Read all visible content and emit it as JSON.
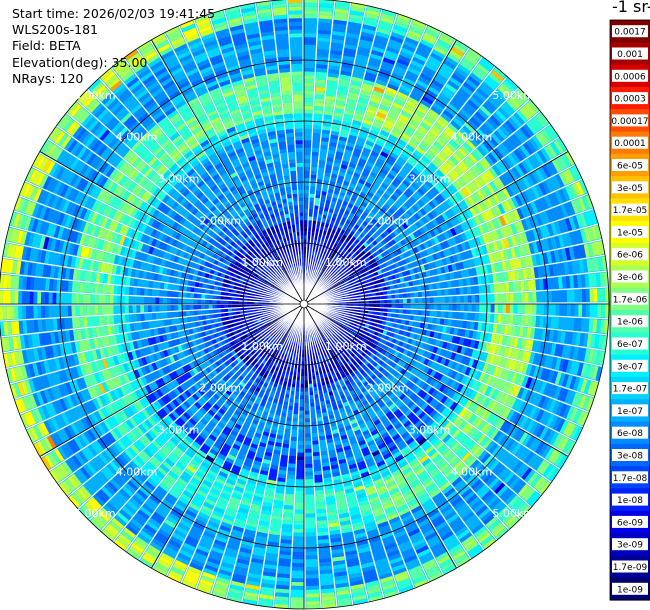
{
  "header": {
    "start_time": "Start time: 2026/02/03 19:41:45",
    "instrument": "WLS200s-181",
    "field": "Field: BETA",
    "elevation": "Elevation(deg): 35.00",
    "nrays": "NRays: 120"
  },
  "colorbar": {
    "title": "-1 sr-",
    "labels": [
      "0.0017",
      "0.001",
      "0.0006",
      "0.0003",
      "0.00017",
      "0.0001",
      "6e-05",
      "3e-05",
      "1.7e-05",
      "1e-05",
      "6e-06",
      "3e-06",
      "1.7e-06",
      "1e-06",
      "6e-07",
      "3e-07",
      "1.7e-07",
      "1e-07",
      "6e-08",
      "3e-08",
      "1.7e-08",
      "1e-08",
      "6e-09",
      "3e-09",
      "1.7e-09",
      "1e-09"
    ],
    "colors": [
      "#800000",
      "#a50000",
      "#d40000",
      "#ff1a00",
      "#ff4d00",
      "#ff7a00",
      "#ff9e00",
      "#ffc000",
      "#ffe000",
      "#ffff00",
      "#d4ff2a",
      "#aaff55",
      "#80ff80",
      "#55ffaa",
      "#2affd4",
      "#00f0ff",
      "#00d4ff",
      "#00b0ff",
      "#008cff",
      "#0068ff",
      "#0044ff",
      "#0020ff",
      "#0000e8",
      "#0000c0",
      "#000098",
      "#000070"
    ]
  },
  "chart_data": {
    "type": "heatmap",
    "projection": "polar-ppi",
    "field": "BETA",
    "elevation_deg": 35.0,
    "n_rays": 120,
    "max_range_km": 5.0,
    "range_ring_labels": [
      {
        "label": "1.00km",
        "range_km": 1.0
      },
      {
        "label": "2.00km",
        "range_km": 2.0
      },
      {
        "label": "3.00km",
        "range_km": 3.0
      },
      {
        "label": "4.00km",
        "range_km": 4.0
      },
      {
        "label": "5.00km",
        "range_km": 5.0
      }
    ],
    "range_annulus_features": [
      {
        "range_km": [
          0.0,
          1.4
        ],
        "level": "~3e-08 to 1e-07",
        "description": "mixed blue near-field"
      },
      {
        "range_km": [
          1.4,
          3.0
        ],
        "level": "~1e-07 to 3e-07",
        "description": "cyan/light-blue"
      },
      {
        "range_km": [
          3.0,
          3.8
        ],
        "level": "~1e-06 to 1e-05",
        "description": "green/yellow aerosol ring"
      },
      {
        "range_km": [
          3.8,
          4.7
        ],
        "level": "~1e-07 to 3e-07",
        "description": "cyan/light-blue"
      },
      {
        "range_km": [
          4.7,
          5.0
        ],
        "level": "~1e-06 to 3e-05",
        "description": "green/yellow/orange outer ring"
      }
    ]
  }
}
